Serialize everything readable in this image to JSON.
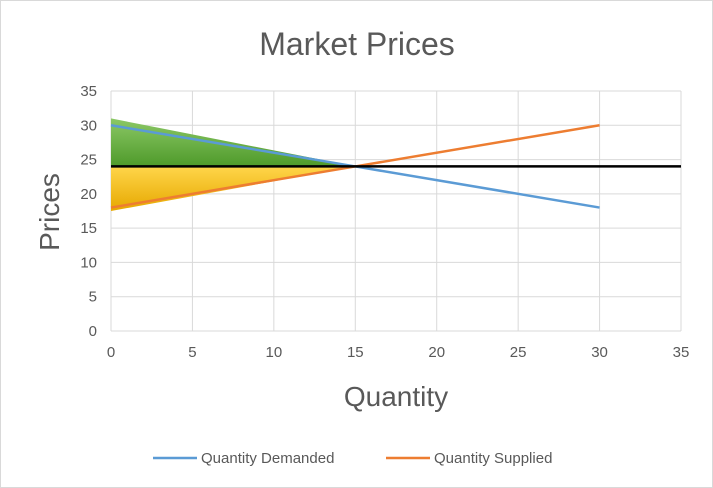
{
  "chart_data": {
    "type": "line",
    "title": "Market Prices",
    "xlabel": "Quantity",
    "ylabel": "Prices",
    "xlim": [
      0,
      35
    ],
    "ylim": [
      0,
      35
    ],
    "xticks": [
      0,
      5,
      10,
      15,
      20,
      25,
      30,
      35
    ],
    "yticks": [
      0,
      5,
      10,
      15,
      20,
      25,
      30,
      35
    ],
    "grid": true,
    "legend_position": "bottom",
    "series": [
      {
        "name": "Quantity Demanded",
        "color": "#5b9bd5",
        "x": [
          0,
          15,
          30
        ],
        "y": [
          30,
          24,
          18
        ]
      },
      {
        "name": "Quantity Supplied",
        "color": "#ed7d31",
        "x": [
          0,
          15,
          30
        ],
        "y": [
          18,
          24,
          30
        ]
      }
    ],
    "equilibrium_line": {
      "y": 24,
      "color": "#000000"
    },
    "shaded_areas": [
      {
        "kind": "consumer-surplus",
        "color": "#70ad47",
        "points": [
          [
            0,
            31
          ],
          [
            15,
            24
          ],
          [
            0,
            24
          ]
        ]
      },
      {
        "kind": "producer-surplus",
        "color": "#ffc000",
        "points": [
          [
            0,
            24
          ],
          [
            15,
            24
          ],
          [
            0,
            17.5
          ]
        ]
      }
    ]
  }
}
